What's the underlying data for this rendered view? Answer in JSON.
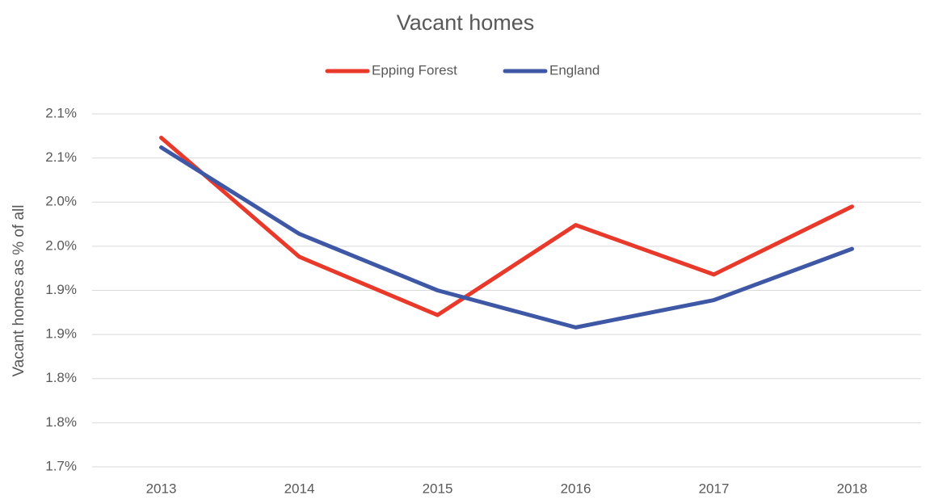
{
  "chart_data": {
    "type": "line",
    "title": "Vacant homes",
    "y_label": "Vacant homes as % of all",
    "categories": [
      "2013",
      "2014",
      "2015",
      "2016",
      "2017",
      "2018"
    ],
    "series": [
      {
        "name": "Epping Forest",
        "color": "#e8392a",
        "values": [
          2.073,
          1.938,
          1.872,
          1.974,
          1.918,
          1.995
        ]
      },
      {
        "name": "England",
        "color": "#3f58a6",
        "values": [
          2.062,
          1.964,
          1.9,
          1.858,
          1.889,
          1.947
        ]
      }
    ],
    "ylim": [
      1.7,
      2.1
    ],
    "yticks": [
      {
        "value": 1.7,
        "label": "1.7%"
      },
      {
        "value": 1.75,
        "label": "1.8%"
      },
      {
        "value": 1.8,
        "label": "1.8%"
      },
      {
        "value": 1.85,
        "label": "1.9%"
      },
      {
        "value": 1.9,
        "label": "1.9%"
      },
      {
        "value": 1.95,
        "label": "2.0%"
      },
      {
        "value": 2.0,
        "label": "2.0%"
      },
      {
        "value": 2.05,
        "label": "2.1%"
      },
      {
        "value": 2.1,
        "label": "2.1%"
      }
    ],
    "grid": true,
    "legend": "top"
  }
}
